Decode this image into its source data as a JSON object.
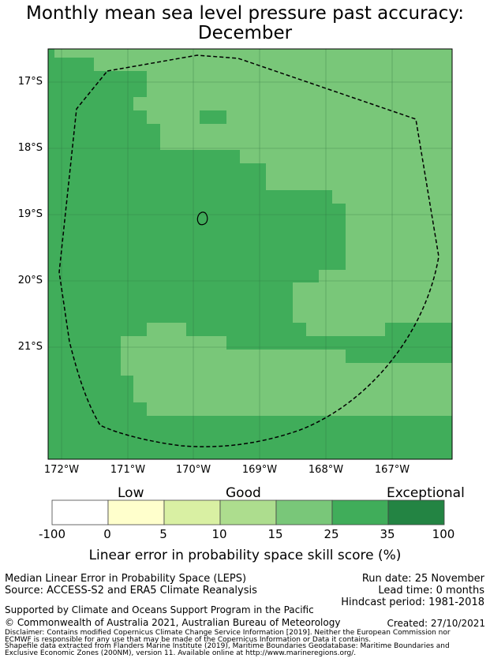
{
  "title": {
    "line1": "Monthly mean sea level pressure past accuracy:",
    "line2": "December"
  },
  "map": {
    "lat_labels": [
      "17°S",
      "18°S",
      "19°S",
      "20°S",
      "21°S"
    ],
    "lon_labels": [
      "172°W",
      "171°W",
      "170°W",
      "169°W",
      "168°W",
      "167°W"
    ],
    "colors": {
      "band_15_25": "#79c779",
      "band_25_35": "#40ad5a",
      "eez_line": "#000000"
    }
  },
  "legend": {
    "categories": [
      "Low",
      "Good",
      "Exceptional"
    ],
    "ticks": [
      "-100",
      "0",
      "5",
      "10",
      "15",
      "25",
      "35",
      "100"
    ],
    "bins": [
      {
        "range": "-100 to 0",
        "color": "#ffffff"
      },
      {
        "range": "0 to 5",
        "color": "#ffffcc"
      },
      {
        "range": "5 to 10",
        "color": "#d9f0a3"
      },
      {
        "range": "10 to 15",
        "color": "#addd8e"
      },
      {
        "range": "15 to 25",
        "color": "#79c779"
      },
      {
        "range": "25 to 35",
        "color": "#40ad5a"
      },
      {
        "range": "35 to 100",
        "color": "#238443"
      }
    ],
    "axis_title": "Linear error in probability space skill score (%)"
  },
  "footer": {
    "method": "Median Linear Error in Probability Space (LEPS)",
    "source": "Source: ACCESS-S2 and ERA5 Climate Reanalysis",
    "run_date": "Run date: 25 November",
    "lead_time": "Lead time: 0 months",
    "hindcast": "Hindcast period: 1981-2018",
    "support": "Supported by Climate and Oceans Support Program in the Pacific",
    "copyright": "© Commonwealth of Australia 2021, Australian Bureau of Meteorology",
    "created": "Created: 27/10/2021",
    "disclaimer1": "Disclaimer: Contains modified Copernicus Climate Change Service Information [2019]. Neither the European Commission nor",
    "disclaimer2": "ECMWF is responsible for any use that may be made of the Copernicus Information or Data it contains.",
    "shapefile1": "Shapefile data extracted from Flanders Marine Institute (2019), Maritime Boundaries Geodatabase: Maritime Boundaries and",
    "shapefile2": "Exclusive Economic Zones (200NM), version 11. Available online at http://www.marineregions.org/."
  }
}
